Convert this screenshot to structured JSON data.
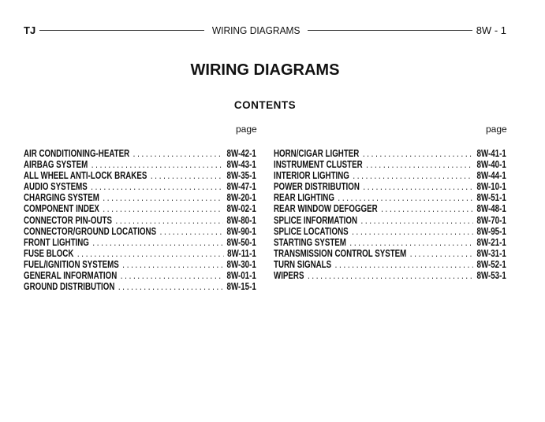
{
  "header": {
    "left": "TJ",
    "center": "WIRING DIAGRAMS",
    "right": "8W - 1"
  },
  "title": "WIRING DIAGRAMS",
  "contents_heading": "CONTENTS",
  "page_label": "page",
  "left_column": [
    {
      "name": "AIR CONDITIONING-HEATER",
      "page": "8W-42-1"
    },
    {
      "name": "AIRBAG SYSTEM",
      "page": "8W-43-1"
    },
    {
      "name": "ALL WHEEL ANTI-LOCK BRAKES",
      "page": "8W-35-1"
    },
    {
      "name": "AUDIO SYSTEMS",
      "page": "8W-47-1"
    },
    {
      "name": "CHARGING SYSTEM",
      "page": "8W-20-1"
    },
    {
      "name": "COMPONENT INDEX",
      "page": "8W-02-1"
    },
    {
      "name": "CONNECTOR PIN-OUTS",
      "page": "8W-80-1"
    },
    {
      "name": "CONNECTOR/GROUND LOCATIONS",
      "page": "8W-90-1"
    },
    {
      "name": "FRONT LIGHTING",
      "page": "8W-50-1"
    },
    {
      "name": "FUSE BLOCK",
      "page": "8W-11-1"
    },
    {
      "name": "FUEL/IGNITION SYSTEMS",
      "page": "8W-30-1"
    },
    {
      "name": "GENERAL INFORMATION",
      "page": "8W-01-1"
    },
    {
      "name": "GROUND DISTRIBUTION",
      "page": "8W-15-1"
    }
  ],
  "right_column": [
    {
      "name": "HORN/CIGAR LIGHTER",
      "page": "8W-41-1"
    },
    {
      "name": "INSTRUMENT CLUSTER",
      "page": "8W-40-1"
    },
    {
      "name": "INTERIOR LIGHTING",
      "page": "8W-44-1"
    },
    {
      "name": "POWER DISTRIBUTION",
      "page": "8W-10-1"
    },
    {
      "name": "REAR LIGHTING",
      "page": "8W-51-1"
    },
    {
      "name": "REAR WINDOW DEFOGGER",
      "page": "8W-48-1"
    },
    {
      "name": "SPLICE INFORMATION",
      "page": "8W-70-1"
    },
    {
      "name": "SPLICE LOCATIONS",
      "page": "8W-95-1"
    },
    {
      "name": "STARTING SYSTEM",
      "page": "8W-21-1"
    },
    {
      "name": "TRANSMISSION CONTROL SYSTEM",
      "page": "8W-31-1"
    },
    {
      "name": "TURN SIGNALS",
      "page": "8W-52-1"
    },
    {
      "name": "WIPERS",
      "page": "8W-53-1"
    }
  ]
}
